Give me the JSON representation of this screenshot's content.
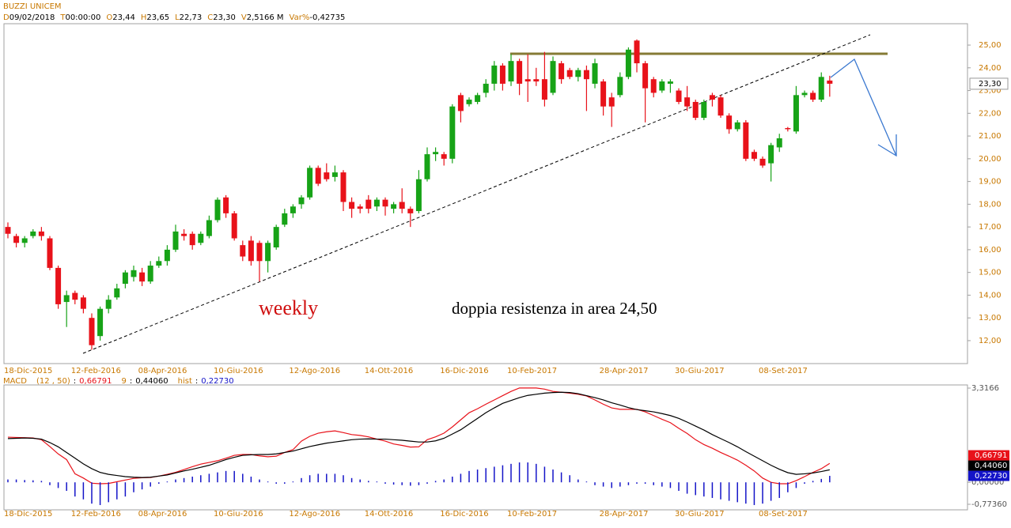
{
  "chart_data": [
    {
      "type": "candlestick",
      "title": "BUZZI UNICEM",
      "header": [
        {
          "key": "D",
          "text": "09/02/2018"
        },
        {
          "key": "T",
          "text": "00:00:00"
        },
        {
          "key": "O",
          "text": "23,44"
        },
        {
          "key": "H",
          "text": "23,65"
        },
        {
          "key": "L",
          "text": "22,73"
        },
        {
          "key": "C",
          "text": "23,30"
        },
        {
          "key": "V",
          "text": "2,5166 M"
        },
        {
          "key": "Var%",
          "text": "-0,42735"
        }
      ],
      "annotations": [
        "weekly",
        "doppia resistenza in area 24,50"
      ],
      "open": [
        17.0,
        16.6,
        16.3,
        16.6,
        16.8,
        16.5,
        15.2,
        13.7,
        14.1,
        13.9,
        13.0,
        12.2,
        13.4,
        13.9,
        14.5,
        14.8,
        15.0,
        14.6,
        15.3,
        15.5,
        16.0,
        16.7,
        16.7,
        16.3,
        16.6,
        17.3,
        18.3,
        17.6,
        16.2,
        16.4,
        16.3,
        15.5,
        16.1,
        17.1,
        17.6,
        18.0,
        18.3,
        19.6,
        19.4,
        19.2,
        19.4,
        18.1,
        17.9,
        18.2,
        17.9,
        18.2,
        17.8,
        18.1,
        17.8,
        17.7,
        19.1,
        20.2,
        20.2,
        20.0,
        22.8,
        22.4,
        22.5,
        22.9,
        23.3,
        24.1,
        23.4,
        24.3,
        23.5,
        23.5,
        23.5,
        22.9,
        24.2,
        23.9,
        23.6,
        23.9,
        23.3,
        23.4,
        22.7,
        22.8,
        23.6,
        25.2,
        24.2,
        23.5,
        23.0,
        23.3,
        23.0,
        22.7,
        22.5,
        21.8,
        22.8,
        22.7,
        21.9,
        21.3,
        21.6,
        20.3,
        20.0,
        19.8,
        20.5,
        21.35,
        21.2,
        22.8,
        22.9,
        22.6,
        23.44
      ],
      "high": [
        17.2,
        16.7,
        16.6,
        16.9,
        17.0,
        16.6,
        15.3,
        14.2,
        14.2,
        14.0,
        13.2,
        13.5,
        14.0,
        14.5,
        15.1,
        15.3,
        15.2,
        15.5,
        15.7,
        16.2,
        17.1,
        16.9,
        16.8,
        16.8,
        17.5,
        18.3,
        18.4,
        17.7,
        16.4,
        16.6,
        16.4,
        16.4,
        17.1,
        17.8,
        18.0,
        18.4,
        19.7,
        19.7,
        19.8,
        19.7,
        19.5,
        18.3,
        18.0,
        18.4,
        18.3,
        18.3,
        18.1,
        18.7,
        17.9,
        19.5,
        20.5,
        20.5,
        20.3,
        22.4,
        22.9,
        22.7,
        22.9,
        23.5,
        24.3,
        24.2,
        24.6,
        24.4,
        24.6,
        24.0,
        24.7,
        24.5,
        24.3,
        24.0,
        24.0,
        24.1,
        24.4,
        23.5,
        22.9,
        23.8,
        24.9,
        25.25,
        24.3,
        23.6,
        23.5,
        23.5,
        23.1,
        23.2,
        22.6,
        22.6,
        22.9,
        22.8,
        22.0,
        21.7,
        21.7,
        20.4,
        20.1,
        20.7,
        21.1,
        21.4,
        23.2,
        23.0,
        23.0,
        23.8,
        23.65
      ],
      "low": [
        16.5,
        16.1,
        16.1,
        16.5,
        16.4,
        15.1,
        13.4,
        12.6,
        13.6,
        13.2,
        11.6,
        12.0,
        13.2,
        13.8,
        14.3,
        14.6,
        14.4,
        14.5,
        15.2,
        15.3,
        15.9,
        16.4,
        16.0,
        16.2,
        16.5,
        17.2,
        17.4,
        16.4,
        15.5,
        15.3,
        14.6,
        15.0,
        16.0,
        17.0,
        17.4,
        17.8,
        18.2,
        18.8,
        19.0,
        19.0,
        17.7,
        17.4,
        17.6,
        17.6,
        17.7,
        17.5,
        17.6,
        17.6,
        17.0,
        17.6,
        19.0,
        19.9,
        19.7,
        19.8,
        21.6,
        22.3,
        22.4,
        22.7,
        23.0,
        23.0,
        23.2,
        22.8,
        22.5,
        23.2,
        22.3,
        22.8,
        23.3,
        23.5,
        23.4,
        22.1,
        23.1,
        21.9,
        21.4,
        22.7,
        23.5,
        23.8,
        21.6,
        22.7,
        22.9,
        22.9,
        22.4,
        22.1,
        21.7,
        21.7,
        22.3,
        21.8,
        21.1,
        21.2,
        19.9,
        19.9,
        19.6,
        19.0,
        20.3,
        21.2,
        21.1,
        22.7,
        22.5,
        22.5,
        22.73
      ],
      "close": [
        16.7,
        16.3,
        16.5,
        16.8,
        16.6,
        15.2,
        13.6,
        14.0,
        13.8,
        13.4,
        11.8,
        13.4,
        13.8,
        14.3,
        15.0,
        15.1,
        14.6,
        15.3,
        15.5,
        16.0,
        16.8,
        16.6,
        16.2,
        16.7,
        17.3,
        18.2,
        17.6,
        16.5,
        15.7,
        15.5,
        15.5,
        16.3,
        17.0,
        17.6,
        17.9,
        18.3,
        19.6,
        18.9,
        19.1,
        19.4,
        18.1,
        17.8,
        17.8,
        17.8,
        18.2,
        17.9,
        18.0,
        17.8,
        17.6,
        19.1,
        20.2,
        20.3,
        20.0,
        22.3,
        22.1,
        22.6,
        22.8,
        23.3,
        24.1,
        23.3,
        24.3,
        23.3,
        23.4,
        23.4,
        22.6,
        24.3,
        23.5,
        23.6,
        23.9,
        23.5,
        24.2,
        22.3,
        22.3,
        23.6,
        24.8,
        24.2,
        23.1,
        22.9,
        23.4,
        23.4,
        22.5,
        22.3,
        21.8,
        22.5,
        22.6,
        21.9,
        21.3,
        21.6,
        20.0,
        20.0,
        19.7,
        20.6,
        20.9,
        21.3,
        22.8,
        22.9,
        22.6,
        23.6,
        23.3
      ],
      "last_close_label": "23,30",
      "up_color": "#17a317",
      "down_color": "#e8121a",
      "xlim": [
        -0.47,
        114.43
      ],
      "xticks": [
        {
          "value": 0,
          "label": "18-Dic-2015"
        },
        {
          "value": 8,
          "label": "12-Feb-2016"
        },
        {
          "value": 16,
          "label": "08-Apr-2016"
        },
        {
          "value": 25,
          "label": "10-Giu-2016"
        },
        {
          "value": 34,
          "label": "12-Ago-2016"
        },
        {
          "value": 43,
          "label": "14-Ott-2016"
        },
        {
          "value": 52,
          "label": "16-Dic-2016"
        },
        {
          "value": 60,
          "label": "10-Feb-2017"
        },
        {
          "value": 71,
          "label": "28-Apr-2017"
        },
        {
          "value": 80,
          "label": "30-Giu-2017"
        },
        {
          "value": 90,
          "label": "08-Set-2017"
        }
      ],
      "ylim": [
        10.99,
        25.94
      ],
      "yticks": [
        {
          "value": 12,
          "label": "12,00"
        },
        {
          "value": 13,
          "label": "13,00"
        },
        {
          "value": 14,
          "label": "14,00"
        },
        {
          "value": 15,
          "label": "15,00"
        },
        {
          "value": 16,
          "label": "16,00"
        },
        {
          "value": 17,
          "label": "17,00"
        },
        {
          "value": 18,
          "label": "18,00"
        },
        {
          "value": 19,
          "label": "19,00"
        },
        {
          "value": 20,
          "label": "20,00"
        },
        {
          "value": 21,
          "label": "21,00"
        },
        {
          "value": 22,
          "label": "22,00"
        },
        {
          "value": 23,
          "label": "23,00"
        },
        {
          "value": 24,
          "label": "24,00"
        },
        {
          "value": 25,
          "label": "25,00"
        }
      ]
    },
    {
      "type": "line",
      "title": "MACD",
      "series": [
        {
          "name": "(12 , 50)",
          "color": "#e8121a",
          "current_label": "0,66791",
          "values": [
            1.59,
            1.58,
            1.57,
            1.56,
            1.5,
            1.26,
            1.0,
            0.8,
            0.3,
            0.15,
            -0.03,
            -0.05,
            -0.04,
            0.02,
            0.08,
            0.14,
            0.16,
            0.17,
            0.22,
            0.28,
            0.35,
            0.45,
            0.55,
            0.64,
            0.7,
            0.76,
            0.85,
            0.95,
            0.98,
            0.98,
            0.93,
            0.9,
            0.92,
            1.05,
            1.15,
            1.45,
            1.62,
            1.73,
            1.78,
            1.81,
            1.75,
            1.68,
            1.65,
            1.6,
            1.52,
            1.45,
            1.35,
            1.3,
            1.24,
            1.25,
            1.5,
            1.6,
            1.73,
            1.95,
            2.2,
            2.45,
            2.59,
            2.75,
            2.9,
            3.05,
            3.2,
            3.32,
            3.32,
            3.32,
            3.28,
            3.2,
            3.17,
            3.14,
            3.1,
            3.04,
            2.9,
            2.75,
            2.62,
            2.57,
            2.57,
            2.57,
            2.48,
            2.35,
            2.22,
            2.1,
            1.9,
            1.72,
            1.5,
            1.33,
            1.2,
            1.05,
            0.92,
            0.78,
            0.6,
            0.4,
            0.15,
            0,
            -0.05,
            -0.05,
            0.06,
            0.2,
            0.35,
            0.48,
            0.66791
          ]
        },
        {
          "name": "9",
          "color": "#000000",
          "current_label": "0,44060",
          "values": [
            1.54,
            1.55,
            1.56,
            1.55,
            1.52,
            1.4,
            1.25,
            1.05,
            0.85,
            0.65,
            0.48,
            0.35,
            0.28,
            0.24,
            0.2,
            0.18,
            0.17,
            0.18,
            0.22,
            0.26,
            0.33,
            0.4,
            0.46,
            0.53,
            0.6,
            0.7,
            0.8,
            0.88,
            0.95,
            0.97,
            0.98,
            0.98,
            1.0,
            1.05,
            1.1,
            1.18,
            1.26,
            1.32,
            1.38,
            1.42,
            1.46,
            1.5,
            1.52,
            1.53,
            1.52,
            1.52,
            1.5,
            1.48,
            1.45,
            1.42,
            1.42,
            1.46,
            1.55,
            1.7,
            1.85,
            2.05,
            2.25,
            2.45,
            2.62,
            2.78,
            2.88,
            2.98,
            3.06,
            3.1,
            3.14,
            3.16,
            3.17,
            3.16,
            3.12,
            3.05,
            2.98,
            2.9,
            2.8,
            2.72,
            2.63,
            2.56,
            2.52,
            2.48,
            2.42,
            2.35,
            2.25,
            2.12,
            1.98,
            1.84,
            1.68,
            1.54,
            1.4,
            1.25,
            1.08,
            0.92,
            0.76,
            0.6,
            0.46,
            0.34,
            0.28,
            0.3,
            0.33,
            0.38,
            0.4406
          ]
        },
        {
          "name": "hist",
          "color": "#1414c8",
          "style": "bar",
          "current_label": "0,22730",
          "values": [
            0.1,
            0.1,
            0.08,
            0.07,
            0.05,
            -0.1,
            -0.2,
            -0.3,
            -0.5,
            -0.6,
            -0.75,
            -0.8,
            -0.7,
            -0.6,
            -0.5,
            -0.35,
            -0.25,
            -0.15,
            -0.05,
            0.02,
            0.1,
            0.15,
            0.2,
            0.25,
            0.3,
            0.35,
            0.4,
            0.4,
            0.3,
            0.2,
            0.1,
            0,
            -0.05,
            -0.05,
            0,
            0.15,
            0.25,
            0.3,
            0.3,
            0.3,
            0.25,
            0.15,
            0.1,
            0.05,
            0,
            -0.05,
            -0.08,
            -0.1,
            -0.12,
            -0.1,
            -0.05,
            0.05,
            0.1,
            0.2,
            0.3,
            0.4,
            0.45,
            0.5,
            0.55,
            0.6,
            0.65,
            0.7,
            0.7,
            0.65,
            0.55,
            0.45,
            0.35,
            0.25,
            0.1,
            0,
            -0.1,
            -0.15,
            -0.2,
            -0.15,
            -0.1,
            -0.05,
            -0.05,
            -0.1,
            -0.15,
            -0.2,
            -0.3,
            -0.4,
            -0.45,
            -0.5,
            -0.55,
            -0.6,
            -0.65,
            -0.7,
            -0.75,
            -0.8,
            -0.75,
            -0.65,
            -0.55,
            -0.35,
            -0.2,
            -0.05,
            0.05,
            0.12,
            0.2273
          ]
        }
      ],
      "ylim": [
        -0.968,
        3.428
      ],
      "yticks": [
        {
          "value": -0.7736,
          "label": "-0,77360"
        },
        {
          "value": 0,
          "label": "0,00000"
        },
        {
          "value": 3.3166,
          "label": "3,3166"
        }
      ]
    }
  ]
}
